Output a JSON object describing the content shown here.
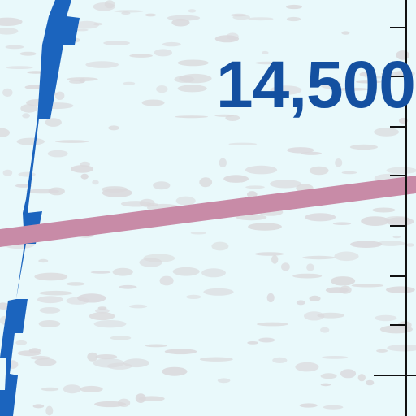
{
  "map": {
    "altitude_label": "14,500",
    "colors": {
      "background": "#e9f9fb",
      "speckle": "#dad9dc",
      "airspace_line": "#1b64be",
      "route_line": "#c88ba7",
      "label_text": "#1450a0",
      "tick_line": "#111111"
    }
  }
}
